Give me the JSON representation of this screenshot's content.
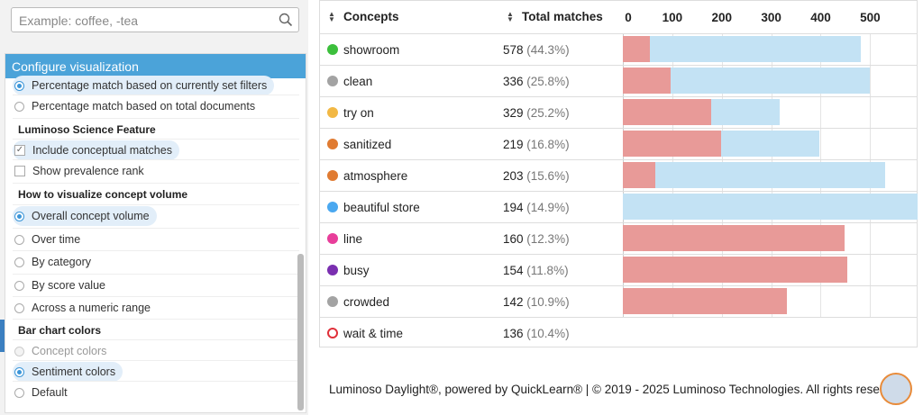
{
  "search": {
    "placeholder": "Example: coffee, -tea"
  },
  "config": {
    "title": "Configure visualization",
    "items": [
      {
        "kind": "radio",
        "label": "Percentage match based on currently set filters",
        "checked": true
      },
      {
        "kind": "radio",
        "label": "Percentage match based on total documents",
        "checked": false
      },
      {
        "kind": "heading",
        "label": "Luminoso Science Feature"
      },
      {
        "kind": "checkbox",
        "label": "Include conceptual matches",
        "checked": true
      },
      {
        "kind": "checkbox",
        "label": "Show prevalence rank",
        "checked": false
      },
      {
        "kind": "heading",
        "label": "How to visualize concept volume"
      },
      {
        "kind": "radio",
        "label": "Overall concept volume",
        "checked": true
      },
      {
        "kind": "radio",
        "label": "Over time",
        "checked": false
      },
      {
        "kind": "radio",
        "label": "By category",
        "checked": false
      },
      {
        "kind": "radio",
        "label": "By score value",
        "checked": false
      },
      {
        "kind": "radio",
        "label": "Across a numeric range",
        "checked": false
      },
      {
        "kind": "heading",
        "label": "Bar chart colors"
      },
      {
        "kind": "radio",
        "label": "Concept colors",
        "checked": false,
        "disabled": true
      },
      {
        "kind": "radio",
        "label": "Sentiment colors",
        "checked": true
      },
      {
        "kind": "radio",
        "label": "Default",
        "checked": false
      }
    ]
  },
  "table": {
    "headers": [
      "Concepts",
      "Total matches"
    ],
    "xlim": [
      0,
      596
    ],
    "xticks": [
      0,
      100,
      200,
      300,
      400,
      500
    ],
    "negative_color": "#e89a98",
    "positive_color": "#c3e2f4",
    "rows": [
      {
        "concept": "showroom",
        "color": "#3cbf3c",
        "matches": 578,
        "percent": "(44.3%)",
        "negative": 55,
        "positive": 427
      },
      {
        "concept": "clean",
        "color": "#a3a3a3",
        "matches": 336,
        "percent": "(25.8%)",
        "negative": 96,
        "positive": 404
      },
      {
        "concept": "try on",
        "color": "#f2b844",
        "matches": 329,
        "percent": "(25.2%)",
        "negative": 178,
        "positive": 140
      },
      {
        "concept": "sanitized",
        "color": "#e07b32",
        "matches": 219,
        "percent": "(16.8%)",
        "negative": 198,
        "positive": 200
      },
      {
        "concept": "atmosphere",
        "color": "#e07b32",
        "matches": 203,
        "percent": "(15.6%)",
        "negative": 65,
        "positive": 466
      },
      {
        "concept": "beautiful store",
        "color": "#4aa8f0",
        "matches": 194,
        "percent": "(14.9%)",
        "negative": 0,
        "positive": 596
      },
      {
        "concept": "line",
        "color": "#e83e9a",
        "matches": 160,
        "percent": "(12.3%)",
        "negative": 449,
        "positive": 0
      },
      {
        "concept": "busy",
        "color": "#7a2fb0",
        "matches": 154,
        "percent": "(11.8%)",
        "negative": 453,
        "positive": 0
      },
      {
        "concept": "crowded",
        "color": "#a3a3a3",
        "matches": 142,
        "percent": "(10.9%)",
        "negative": 331,
        "positive": 0
      },
      {
        "concept": "wait & time",
        "color": "#e0303a",
        "hollow": true,
        "matches": 136,
        "percent": "(10.4%)",
        "negative": null,
        "positive": null
      }
    ]
  },
  "footer": "Luminoso Daylight®, powered by QuickLearn® | © 2019 - 2025 Luminoso Technologies. All rights rese"
}
